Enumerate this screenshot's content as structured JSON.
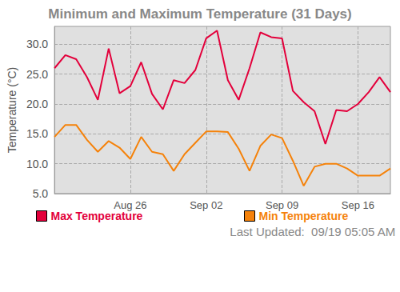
{
  "chart_data": {
    "type": "line",
    "title": "Minimum and Maximum Temperature (31 Days)",
    "y_label": "Temperature (°C)",
    "categories": [
      null,
      null,
      null,
      null,
      null,
      null,
      null,
      "Aug 26",
      null,
      null,
      null,
      null,
      null,
      null,
      "Sep 02",
      null,
      null,
      null,
      null,
      null,
      null,
      "Sep 09",
      null,
      null,
      null,
      null,
      null,
      null,
      "Sep 16",
      null,
      null,
      null
    ],
    "series": [
      {
        "name": "Max Temperature",
        "color": "#e3003b",
        "values": [
          26,
          28.2,
          27.5,
          24.5,
          20.7,
          29.3,
          21.8,
          23,
          27,
          21.7,
          19.1,
          24,
          23.5,
          25.7,
          31,
          32.3,
          24,
          20.7,
          26,
          32,
          31.2,
          31,
          22.2,
          20.3,
          18.8,
          13.3,
          19,
          18.8,
          20,
          22,
          24.5,
          22
        ]
      },
      {
        "name": "Min Temperature",
        "color": "#f5820a",
        "values": [
          14.5,
          16.5,
          16.5,
          14,
          12,
          13.8,
          12.7,
          10.8,
          14.5,
          12,
          11.6,
          8.8,
          11.6,
          13.5,
          15.4,
          15.4,
          15.3,
          12.5,
          8.8,
          13,
          14.9,
          14.3,
          10.5,
          6.3,
          9.5,
          10,
          10,
          9.2,
          8,
          8,
          8,
          9.2
        ]
      }
    ],
    "ylim": [
      5,
      33
    ],
    "yticks": [
      {
        "value": 5,
        "label": "5.0"
      },
      {
        "value": 10,
        "label": "10.0"
      },
      {
        "value": 15,
        "label": "15.0"
      },
      {
        "value": 20,
        "label": "20.0"
      },
      {
        "value": 25,
        "label": "25.0"
      },
      {
        "value": 30,
        "label": "30.0"
      }
    ],
    "grid": true,
    "legend": "bottom",
    "annotations": [
      "Last Updated:  09/19 05:05 AM"
    ]
  }
}
